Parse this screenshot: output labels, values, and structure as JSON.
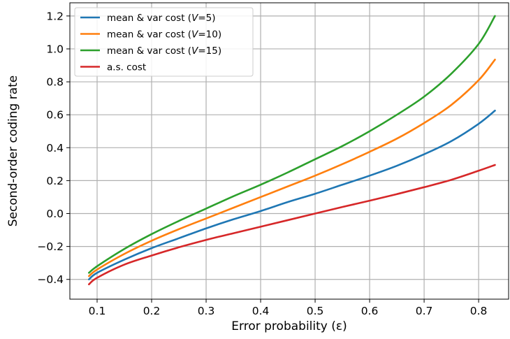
{
  "chart_data": {
    "type": "line",
    "xlabel": "Error probability (ε)",
    "ylabel": "Second-order coding rate",
    "xlim": [
      0.05,
      0.855
    ],
    "ylim": [
      -0.52,
      1.28
    ],
    "xticks": [
      0.1,
      0.2,
      0.3,
      0.4,
      0.5,
      0.6,
      0.7,
      0.8
    ],
    "xtick_labels": [
      "0.1",
      "0.2",
      "0.3",
      "0.4",
      "0.5",
      "0.6",
      "0.7",
      "0.8"
    ],
    "yticks": [
      -0.4,
      -0.2,
      0.0,
      0.2,
      0.4,
      0.6,
      0.8,
      1.0,
      1.2
    ],
    "ytick_labels": [
      "−0.4",
      "−0.2",
      "0.0",
      "0.2",
      "0.4",
      "0.6",
      "0.8",
      "1.0",
      "1.2"
    ],
    "grid": true,
    "legend_position": "top-left",
    "x": [
      0.085,
      0.1,
      0.15,
      0.2,
      0.25,
      0.3,
      0.35,
      0.4,
      0.45,
      0.5,
      0.55,
      0.6,
      0.65,
      0.7,
      0.75,
      0.8,
      0.83
    ],
    "series": [
      {
        "name": "mean & var cost (V=5)",
        "name_parts": [
          "mean & var cost (",
          "V",
          "=5)"
        ],
        "color": "#1f77b4",
        "values": [
          -0.4,
          -0.36,
          -0.28,
          -0.21,
          -0.15,
          -0.09,
          -0.035,
          0.015,
          0.07,
          0.12,
          0.175,
          0.23,
          0.29,
          0.36,
          0.44,
          0.545,
          0.625
        ]
      },
      {
        "name": "mean & var cost (V=10)",
        "name_parts": [
          "mean & var cost (",
          "V",
          "=10)"
        ],
        "color": "#ff7f0e",
        "values": [
          -0.38,
          -0.34,
          -0.245,
          -0.165,
          -0.095,
          -0.03,
          0.035,
          0.1,
          0.165,
          0.23,
          0.3,
          0.375,
          0.455,
          0.55,
          0.66,
          0.81,
          0.935
        ]
      },
      {
        "name": "mean & var cost (V=15)",
        "name_parts": [
          "mean & var cost (",
          "V",
          "=15)"
        ],
        "color": "#2ca02c",
        "values": [
          -0.36,
          -0.32,
          -0.215,
          -0.125,
          -0.045,
          0.03,
          0.105,
          0.175,
          0.25,
          0.33,
          0.41,
          0.5,
          0.6,
          0.71,
          0.85,
          1.03,
          1.2
        ]
      },
      {
        "name": "a.s. cost",
        "name_parts": [
          "a.s. cost"
        ],
        "color": "#d62728",
        "values": [
          -0.43,
          -0.39,
          -0.31,
          -0.255,
          -0.205,
          -0.16,
          -0.12,
          -0.08,
          -0.04,
          0.0,
          0.04,
          0.078,
          0.118,
          0.16,
          0.205,
          0.26,
          0.295
        ]
      }
    ]
  }
}
